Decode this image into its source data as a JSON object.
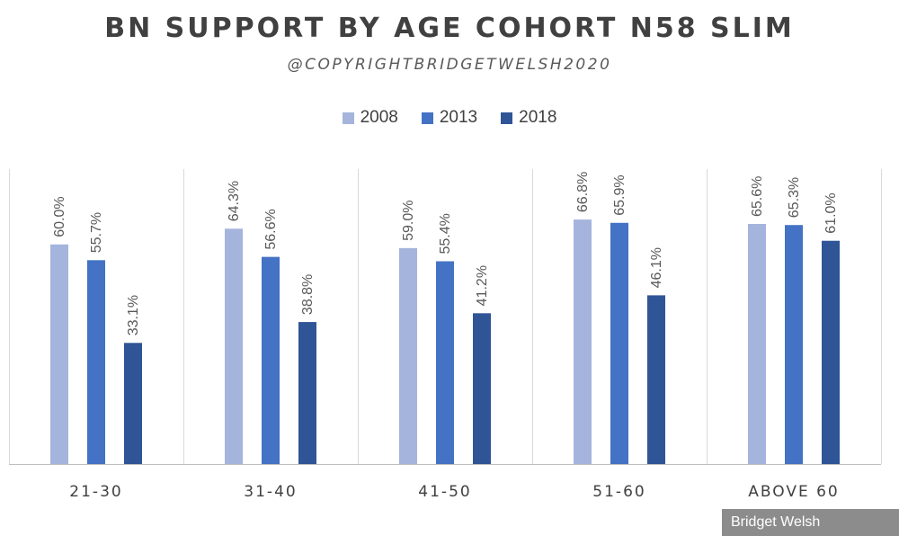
{
  "chart_data": {
    "type": "bar",
    "title": "BN SUPPORT BY AGE COHORT N58 SLIM",
    "subtitle": "@COPYRIGHTBRIDGETWELSH2020",
    "categories": [
      "21-30",
      "31-40",
      "41-50",
      "51-60",
      "ABOVE 60"
    ],
    "series": [
      {
        "name": "2008",
        "color": "#a4b4dc",
        "values": [
          60.0,
          64.3,
          59.0,
          66.8,
          65.6
        ]
      },
      {
        "name": "2013",
        "color": "#4472c4",
        "values": [
          55.7,
          56.6,
          55.4,
          65.9,
          65.3
        ]
      },
      {
        "name": "2018",
        "color": "#2f5597",
        "values": [
          33.1,
          38.8,
          41.2,
          46.1,
          61.0
        ]
      }
    ],
    "data_labels": [
      [
        "60.0%",
        "55.7%",
        "33.1%"
      ],
      [
        "64.3%",
        "56.6%",
        "38.8%"
      ],
      [
        "59.0%",
        "55.4%",
        "41.2%"
      ],
      [
        "66.8%",
        "65.9%",
        "46.1%"
      ],
      [
        "65.6%",
        "65.3%",
        "61.0%"
      ]
    ],
    "legend_position": "top",
    "ylim": [
      0,
      100
    ],
    "y_axis_visible": false,
    "grid": false
  },
  "credit": "Bridget Welsh"
}
